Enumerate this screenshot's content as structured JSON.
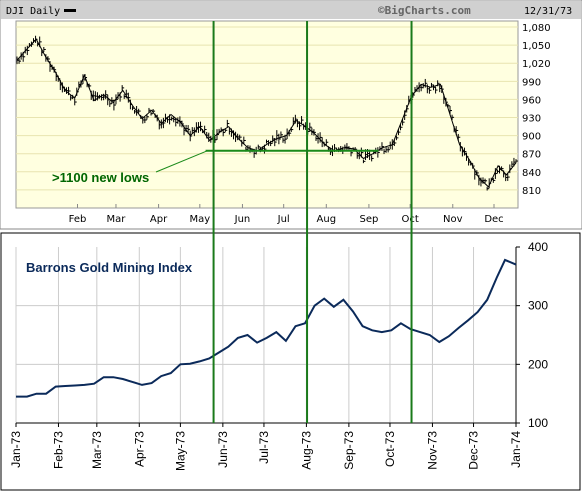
{
  "top_chart": {
    "legend_label": "DJI Daily",
    "brand": "©BigCharts.com",
    "date": "12/31/73",
    "annotation": ">1100 new lows",
    "colors": {
      "background": "#ffffe0",
      "header": "#d0d0d0",
      "annotation": "#006600",
      "price_bars": "#000000"
    }
  },
  "bottom_chart": {
    "title": "Barrons Gold Mining Index",
    "colors": {
      "line": "#0b2a5a",
      "title": "#0b2a5a"
    }
  },
  "vertical_markers": {
    "color": "#1a7a1a",
    "dates": [
      "1973-05-25",
      "1973-08-01",
      "1973-10-16"
    ]
  },
  "chart_data": [
    {
      "type": "line",
      "title": "",
      "series_label": "DJI Daily",
      "categories": [
        "Feb",
        "Mar",
        "Apr",
        "May",
        "Jun",
        "Jul",
        "Aug",
        "Sep",
        "Oct",
        "Nov",
        "Dec"
      ],
      "x": [
        "1973-01-02",
        "1973-01-09",
        "1973-01-16",
        "1973-01-23",
        "1973-01-30",
        "1973-02-06",
        "1973-02-13",
        "1973-02-20",
        "1973-02-27",
        "1973-03-06",
        "1973-03-13",
        "1973-03-20",
        "1973-03-27",
        "1973-04-03",
        "1973-04-10",
        "1973-04-17",
        "1973-04-24",
        "1973-05-01",
        "1973-05-08",
        "1973-05-15",
        "1973-05-22",
        "1973-05-29",
        "1973-06-05",
        "1973-06-12",
        "1973-06-19",
        "1973-06-26",
        "1973-07-03",
        "1973-07-10",
        "1973-07-17",
        "1973-07-24",
        "1973-07-31",
        "1973-08-07",
        "1973-08-14",
        "1973-08-21",
        "1973-08-28",
        "1973-09-04",
        "1973-09-11",
        "1973-09-18",
        "1973-09-25",
        "1973-10-02",
        "1973-10-09",
        "1973-10-16",
        "1973-10-23",
        "1973-10-30",
        "1973-11-06",
        "1973-11-13",
        "1973-11-20",
        "1973-11-27",
        "1973-12-04",
        "1973-12-11",
        "1973-12-18",
        "1973-12-24",
        "1973-12-31"
      ],
      "values": [
        1025,
        1043,
        1060,
        1030,
        1005,
        975,
        962,
        1000,
        958,
        968,
        955,
        975,
        950,
        928,
        942,
        920,
        935,
        922,
        900,
        915,
        892,
        905,
        915,
        895,
        880,
        875,
        886,
        895,
        900,
        925,
        915,
        902,
        885,
        875,
        880,
        878,
        862,
        870,
        880,
        885,
        925,
        965,
        985,
        980,
        985,
        935,
        885,
        860,
        830,
        815,
        850,
        835,
        855
      ],
      "yticks": [
        810,
        840,
        870,
        900,
        930,
        960,
        990,
        1020,
        1050,
        1080
      ],
      "ylim": [
        780,
        1090
      ],
      "support_level": 875,
      "support_from": "1973-05-25",
      "support_to": "1973-09-22"
    },
    {
      "type": "line",
      "title": "Barrons Gold Mining Index",
      "x": [
        "1973-01-01",
        "1973-01-09",
        "1973-01-16",
        "1973-01-23",
        "1973-01-30",
        "1973-02-06",
        "1973-02-13",
        "1973-02-20",
        "1973-02-27",
        "1973-03-06",
        "1973-03-13",
        "1973-03-20",
        "1973-03-27",
        "1973-04-03",
        "1973-04-10",
        "1973-04-17",
        "1973-04-24",
        "1973-05-01",
        "1973-05-08",
        "1973-05-15",
        "1973-05-22",
        "1973-05-29",
        "1973-06-05",
        "1973-06-12",
        "1973-06-19",
        "1973-06-26",
        "1973-07-03",
        "1973-07-10",
        "1973-07-17",
        "1973-07-24",
        "1973-07-31",
        "1973-08-07",
        "1973-08-14",
        "1973-08-21",
        "1973-08-28",
        "1973-09-04",
        "1973-09-11",
        "1973-09-18",
        "1973-09-25",
        "1973-10-02",
        "1973-10-09",
        "1973-10-16",
        "1973-10-23",
        "1973-10-30",
        "1973-11-06",
        "1973-11-13",
        "1973-11-20",
        "1973-11-27",
        "1973-12-04",
        "1973-12-11",
        "1973-12-18",
        "1973-12-24",
        "1974-01-01"
      ],
      "values": [
        145,
        145,
        150,
        150,
        162,
        163,
        164,
        165,
        167,
        178,
        178,
        175,
        170,
        165,
        168,
        180,
        185,
        200,
        201,
        205,
        210,
        220,
        230,
        245,
        250,
        237,
        245,
        255,
        240,
        265,
        270,
        300,
        312,
        298,
        310,
        290,
        265,
        258,
        255,
        258,
        270,
        260,
        255,
        250,
        238,
        248,
        262,
        275,
        289,
        310,
        348,
        378,
        370
      ],
      "x_tick_labels": [
        "Jan-73",
        "Feb-73",
        "Mar-73",
        "Apr-73",
        "May-73",
        "Jun-73",
        "Jul-73",
        "Aug-73",
        "Sep-73",
        "Oct-73",
        "Nov-73",
        "Dec-73",
        "Jan-74"
      ],
      "yticks": [
        100,
        200,
        300,
        400
      ],
      "ylim": [
        100,
        400
      ]
    }
  ]
}
